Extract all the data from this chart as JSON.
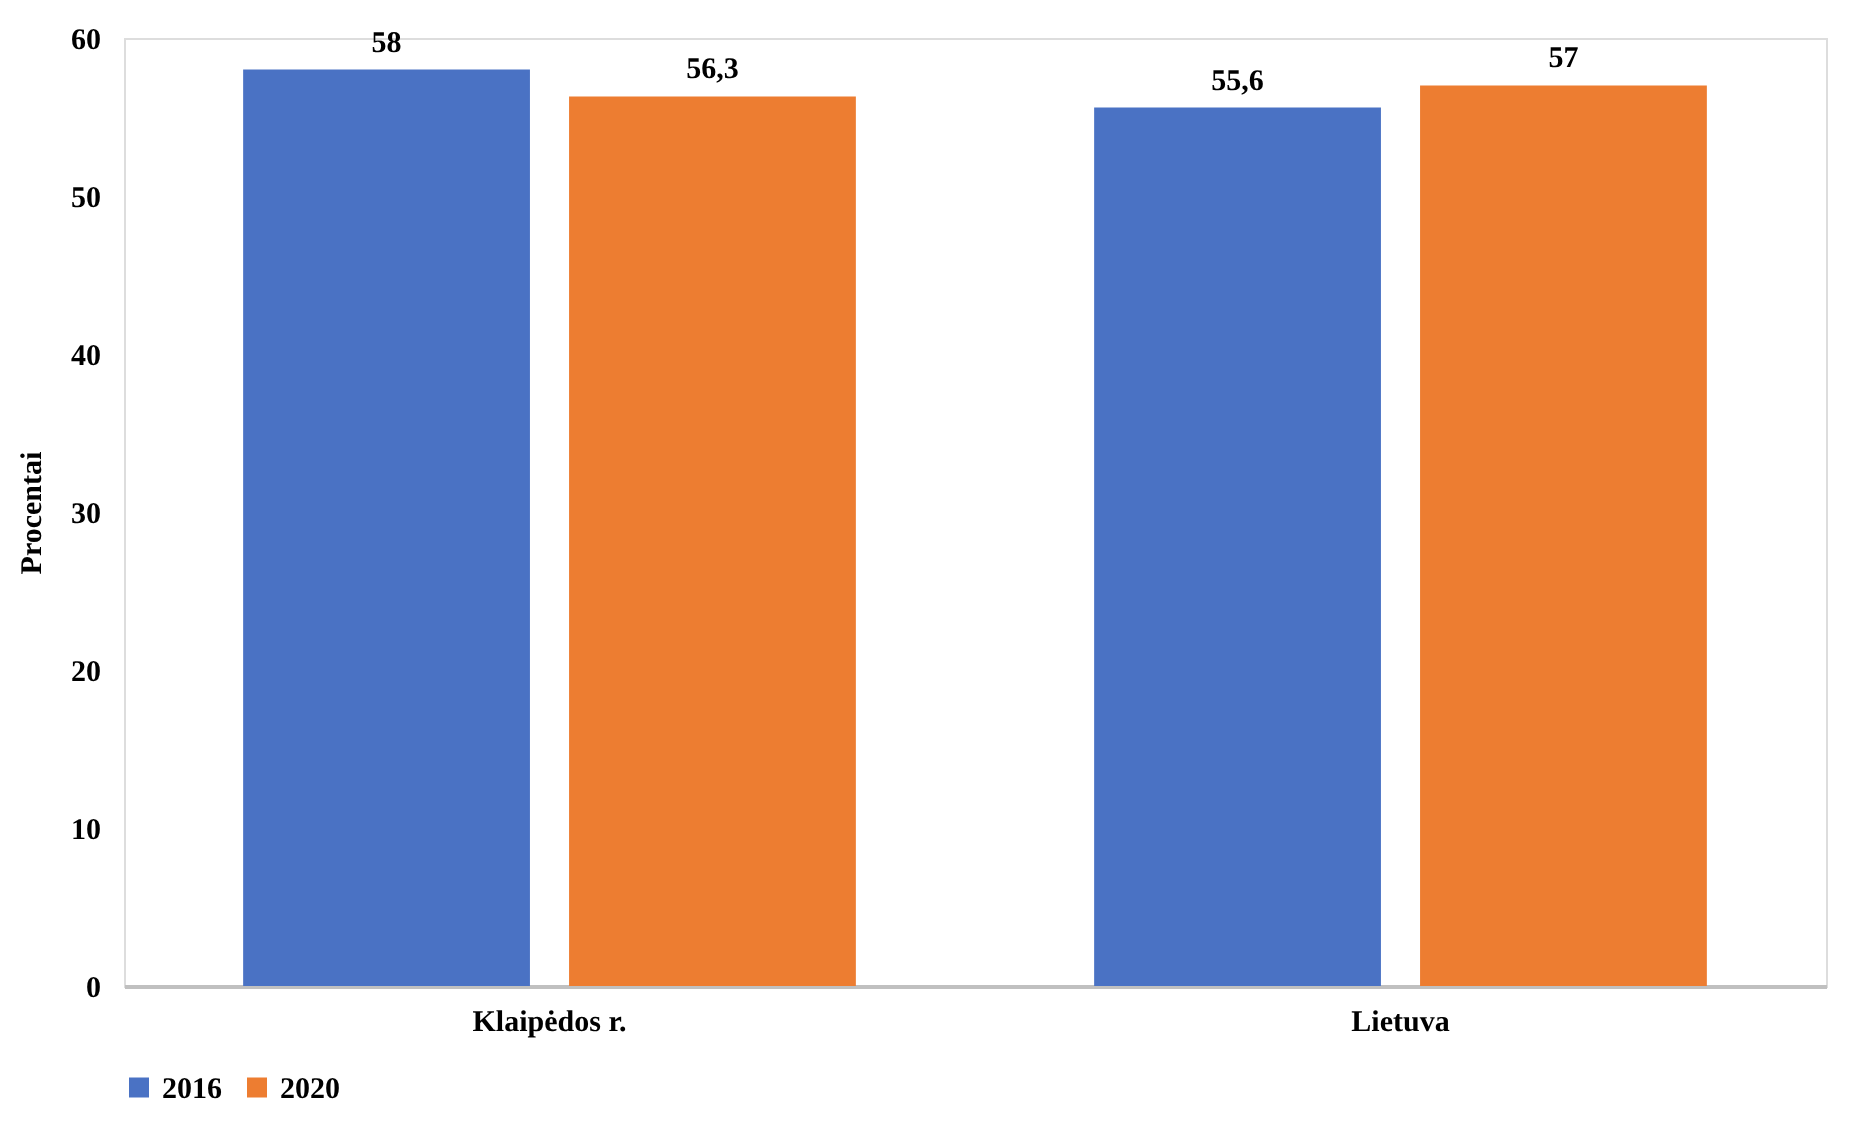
{
  "chart_data": {
    "type": "bar",
    "ylabel": "Procentai",
    "categories": [
      "Klaipėdos r.",
      "Lietuva"
    ],
    "series": [
      {
        "name": "2016",
        "color": "#4a72c4",
        "values": [
          58,
          55.6
        ],
        "value_labels": [
          "58",
          "55,6"
        ]
      },
      {
        "name": "2020",
        "color": "#ed7d31",
        "values": [
          56.3,
          57
        ],
        "value_labels": [
          "56,3",
          "57"
        ]
      }
    ],
    "ylim": [
      0,
      60
    ],
    "yticks": [
      0,
      10,
      20,
      30,
      40,
      50,
      60
    ],
    "grid": false,
    "legend": "bottom"
  }
}
